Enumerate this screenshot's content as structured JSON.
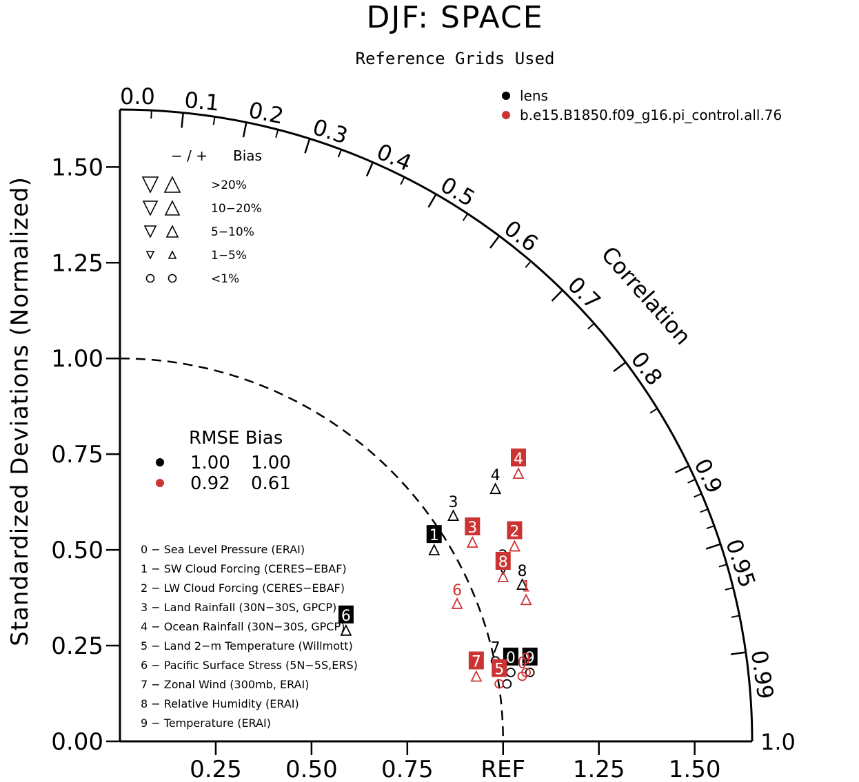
{
  "title": "DJF: SPACE",
  "subtitle": "Reference Grids Used",
  "ylabel": "Standardized Deviations (Normalized)",
  "corr_label": "Correlation",
  "colors": {
    "black": "#000000",
    "red": "#cc3333"
  },
  "legend": [
    {
      "label": "lens",
      "color": "#000000"
    },
    {
      "label": "b.e15.B1850.f09_g16.pi_control.all.76",
      "color": "#cc3333"
    }
  ],
  "bias_legend": {
    "header_sign": "− / +",
    "header_bias": "Bias",
    "rows": [
      ">20%",
      "10−20%",
      "5−10%",
      "1−5%",
      "<1%"
    ]
  },
  "rmse_table": {
    "header": "RMSE Bias",
    "rows": [
      {
        "color": "#000000",
        "rmse": "1.00",
        "bias": "1.00"
      },
      {
        "color": "#cc3333",
        "rmse": "0.92",
        "bias": "0.61"
      }
    ]
  },
  "variables": [
    "0 − Sea Level Pressure (ERAI)",
    "1 − SW Cloud Forcing (CERES−EBAF)",
    "2 − LW Cloud Forcing (CERES−EBAF)",
    "3 − Land Rainfall (30N−30S, GPCP)",
    "4 − Ocean Rainfall (30N−30S, GPCP)",
    "5 − Land 2−m Temperature (Willmott)",
    "6 − Pacific Surface Stress (5N−5S,ERS)",
    "7 − Zonal Wind (300mb, ERAI)",
    "8 − Relative Humidity (ERAI)",
    "9 − Temperature (ERAI)"
  ],
  "chart_data": {
    "type": "scatter",
    "subtype": "taylor_diagram",
    "max_std": 1.65,
    "ref_label": "REF",
    "x_ticks": [
      {
        "value": 0.25,
        "label": "0.25"
      },
      {
        "value": 0.5,
        "label": "0.50"
      },
      {
        "value": 0.75,
        "label": "0.75"
      },
      {
        "value": 1.0,
        "label": "REF"
      },
      {
        "value": 1.25,
        "label": "1.25"
      },
      {
        "value": 1.5,
        "label": "1.50"
      }
    ],
    "y_ticks": [
      {
        "value": 0.0,
        "label": "0.00"
      },
      {
        "value": 0.25,
        "label": "0.25"
      },
      {
        "value": 0.5,
        "label": "0.50"
      },
      {
        "value": 0.75,
        "label": "0.75"
      },
      {
        "value": 1.0,
        "label": "1.00"
      },
      {
        "value": 1.25,
        "label": "1.25"
      },
      {
        "value": 1.5,
        "label": "1.50"
      }
    ],
    "corr_labels": [
      {
        "value": 0.0,
        "label": "0.0"
      },
      {
        "value": 0.1,
        "label": "0.1"
      },
      {
        "value": 0.2,
        "label": "0.2"
      },
      {
        "value": 0.3,
        "label": "0.3"
      },
      {
        "value": 0.4,
        "label": "0.4"
      },
      {
        "value": 0.5,
        "label": "0.5"
      },
      {
        "value": 0.6,
        "label": "0.6"
      },
      {
        "value": 0.7,
        "label": "0.7"
      },
      {
        "value": 0.8,
        "label": "0.8"
      },
      {
        "value": 0.9,
        "label": "0.9"
      },
      {
        "value": 0.95,
        "label": "0.95"
      },
      {
        "value": 0.99,
        "label": "0.99"
      },
      {
        "value": 1.0,
        "label": "1.0"
      }
    ],
    "series": [
      {
        "name": "lens",
        "color": "#000000",
        "points": [
          {
            "id": "0",
            "x": 1.02,
            "y": 0.18,
            "marker": "circle",
            "label_style": "box"
          },
          {
            "id": "1",
            "x": 0.82,
            "y": 0.5,
            "marker": "triangle-up",
            "label_style": "box"
          },
          {
            "id": "2",
            "x": 1.0,
            "y": 0.45,
            "marker": "triangle-down",
            "label_style": "text"
          },
          {
            "id": "3",
            "x": 0.87,
            "y": 0.59,
            "marker": "triangle-up",
            "label_style": "text"
          },
          {
            "id": "4",
            "x": 0.98,
            "y": 0.66,
            "marker": "triangle-up",
            "label_style": "text"
          },
          {
            "id": "5",
            "x": 1.01,
            "y": 0.15,
            "marker": "circle",
            "label_style": "none"
          },
          {
            "id": "6",
            "x": 0.59,
            "y": 0.29,
            "marker": "triangle-up",
            "label_style": "box"
          },
          {
            "id": "7",
            "x": 0.98,
            "y": 0.21,
            "marker": "circle",
            "label_style": "text"
          },
          {
            "id": "8",
            "x": 1.05,
            "y": 0.41,
            "marker": "triangle-up",
            "label_style": "text"
          },
          {
            "id": "9",
            "x": 1.07,
            "y": 0.18,
            "marker": "circle",
            "label_style": "box"
          }
        ]
      },
      {
        "name": "b.e15.B1850.f09_g16.pi_control.all.76",
        "color": "#cc3333",
        "points": [
          {
            "id": "0",
            "x": 1.05,
            "y": 0.17,
            "marker": "circle",
            "label_style": "text"
          },
          {
            "id": "1",
            "x": 1.06,
            "y": 0.37,
            "marker": "triangle-up",
            "label_style": "text"
          },
          {
            "id": "2",
            "x": 1.03,
            "y": 0.51,
            "marker": "triangle-up",
            "label_style": "box"
          },
          {
            "id": "3",
            "x": 0.92,
            "y": 0.52,
            "marker": "triangle-up",
            "label_style": "box"
          },
          {
            "id": "4",
            "x": 1.04,
            "y": 0.7,
            "marker": "triangle-up",
            "label_style": "box"
          },
          {
            "id": "5",
            "x": 0.99,
            "y": 0.15,
            "marker": "circle",
            "label_style": "box"
          },
          {
            "id": "6",
            "x": 0.88,
            "y": 0.36,
            "marker": "triangle-up",
            "label_style": "text"
          },
          {
            "id": "7",
            "x": 0.93,
            "y": 0.17,
            "marker": "triangle-up",
            "label_style": "box"
          },
          {
            "id": "8",
            "x": 1.0,
            "y": 0.43,
            "marker": "triangle-up",
            "label_style": "box"
          },
          {
            "id": "9",
            "x": 1.06,
            "y": 0.18,
            "marker": "circle",
            "label_style": "text"
          }
        ]
      }
    ]
  }
}
